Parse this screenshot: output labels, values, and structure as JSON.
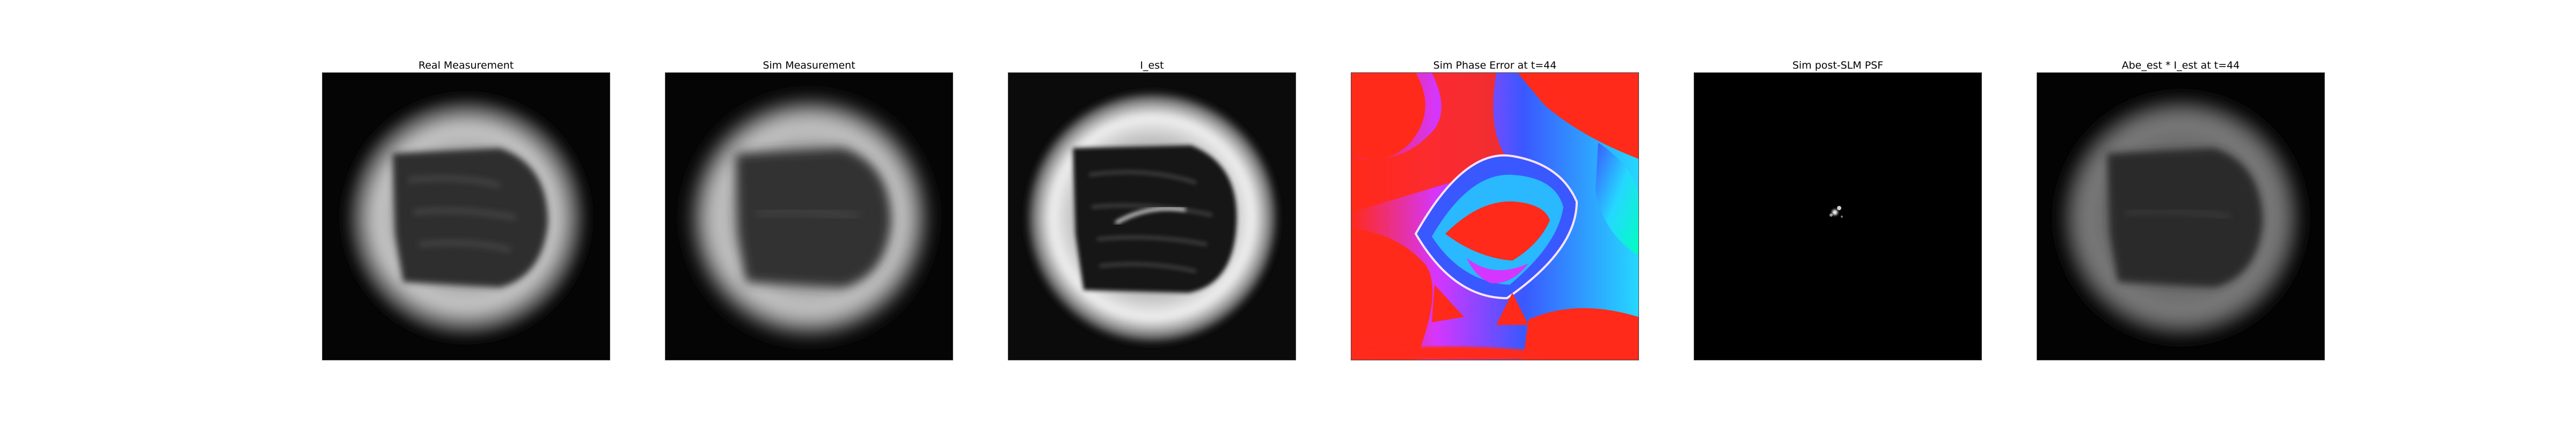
{
  "figure": {
    "panels": [
      {
        "title": "Real Measurement",
        "kind": "measurement"
      },
      {
        "title": "Sim Measurement",
        "kind": "measurement-smooth"
      },
      {
        "title": "I_est",
        "kind": "estimate"
      },
      {
        "title": "Sim Phase Error at t=44",
        "kind": "phase-map"
      },
      {
        "title": "Sim post-SLM PSF",
        "kind": "psf"
      },
      {
        "title": "Abe_est * I_est at t=44",
        "kind": "convolved"
      }
    ]
  },
  "colors": {
    "background": "#ffffff",
    "image_black": "#000000",
    "phase_red": "#ff2a1a",
    "phase_blue": "#3a58ff",
    "phase_cyan": "#25d8ff",
    "phase_magenta": "#d436ff"
  }
}
